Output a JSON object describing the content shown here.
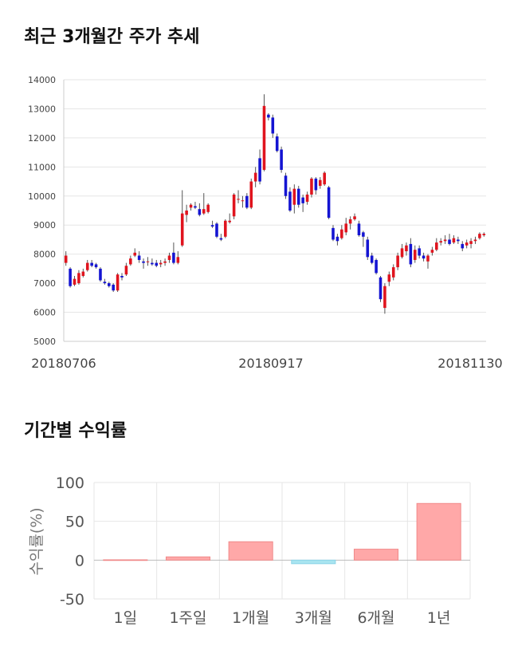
{
  "sections": {
    "price_title": "최근 3개월간 주가 추세",
    "return_title": "기간별 수익률"
  },
  "colors": {
    "up": "#e0141e",
    "down": "#1414d2",
    "positive_bar": "#ffa8a8",
    "negative_bar": "#a8e4f0",
    "grid": "#e6e6e6"
  },
  "chart_data": [
    {
      "type": "candlestick",
      "ylim": [
        5000,
        14000
      ],
      "yticks": [
        "5000",
        "6000",
        "7000",
        "8000",
        "9000",
        "10000",
        "11000",
        "12000",
        "13000",
        "14000"
      ],
      "x_labels": [
        "20180706",
        "20180917",
        "20181130"
      ],
      "grid": true,
      "series": [
        {
          "o": 7700,
          "c": 7950,
          "h": 8100,
          "l": 7600
        },
        {
          "o": 7500,
          "c": 6900,
          "h": 7550,
          "l": 6850
        },
        {
          "o": 6950,
          "c": 7150,
          "h": 7250,
          "l": 6900
        },
        {
          "o": 7000,
          "c": 7350,
          "h": 7450,
          "l": 6950
        },
        {
          "o": 7250,
          "c": 7400,
          "h": 7500,
          "l": 7200
        },
        {
          "o": 7450,
          "c": 7700,
          "h": 7800,
          "l": 7400
        },
        {
          "o": 7700,
          "c": 7600,
          "h": 7800,
          "l": 7550
        },
        {
          "o": 7650,
          "c": 7550,
          "h": 7700,
          "l": 7500
        },
        {
          "o": 7500,
          "c": 7100,
          "h": 7550,
          "l": 7050
        },
        {
          "o": 7050,
          "c": 7000,
          "h": 7150,
          "l": 6950
        },
        {
          "o": 7000,
          "c": 6900,
          "h": 7050,
          "l": 6850
        },
        {
          "o": 6950,
          "c": 6750,
          "h": 7000,
          "l": 6700
        },
        {
          "o": 6750,
          "c": 7300,
          "h": 7350,
          "l": 6700
        },
        {
          "o": 7250,
          "c": 7200,
          "h": 7350,
          "l": 7100
        },
        {
          "o": 7300,
          "c": 7600,
          "h": 7700,
          "l": 7250
        },
        {
          "o": 7650,
          "c": 7850,
          "h": 7950,
          "l": 7600
        },
        {
          "o": 7950,
          "c": 8050,
          "h": 8200,
          "l": 7900
        },
        {
          "o": 7950,
          "c": 7800,
          "h": 8100,
          "l": 7700
        },
        {
          "o": 7750,
          "c": 7700,
          "h": 7850,
          "l": 7500
        },
        {
          "o": 7750,
          "c": 7750,
          "h": 7900,
          "l": 7600
        },
        {
          "o": 7700,
          "c": 7650,
          "h": 7850,
          "l": 7600
        },
        {
          "o": 7700,
          "c": 7600,
          "h": 7800,
          "l": 7550
        },
        {
          "o": 7650,
          "c": 7700,
          "h": 7800,
          "l": 7550
        },
        {
          "o": 7700,
          "c": 7750,
          "h": 7850,
          "l": 7600
        },
        {
          "o": 7800,
          "c": 7950,
          "h": 8050,
          "l": 7700
        },
        {
          "o": 8050,
          "c": 7700,
          "h": 8400,
          "l": 7650
        },
        {
          "o": 7700,
          "c": 7900,
          "h": 8100,
          "l": 7650
        },
        {
          "o": 8300,
          "c": 9400,
          "h": 10200,
          "l": 8250
        },
        {
          "o": 9350,
          "c": 9500,
          "h": 9700,
          "l": 9100
        },
        {
          "o": 9600,
          "c": 9700,
          "h": 9750,
          "l": 9500
        },
        {
          "o": 9650,
          "c": 9600,
          "h": 9800,
          "l": 9550
        },
        {
          "o": 9550,
          "c": 9350,
          "h": 9750,
          "l": 9300
        },
        {
          "o": 9400,
          "c": 9550,
          "h": 10100,
          "l": 9350
        },
        {
          "o": 9450,
          "c": 9700,
          "h": 9750,
          "l": 9400
        },
        {
          "o": 9000,
          "c": 8950,
          "h": 9150,
          "l": 8900
        },
        {
          "o": 9050,
          "c": 8600,
          "h": 9100,
          "l": 8550
        },
        {
          "o": 8550,
          "c": 8500,
          "h": 8700,
          "l": 8450
        },
        {
          "o": 8600,
          "c": 9150,
          "h": 9200,
          "l": 8550
        },
        {
          "o": 9100,
          "c": 9150,
          "h": 9400,
          "l": 9050
        },
        {
          "o": 9300,
          "c": 10050,
          "h": 10100,
          "l": 9200
        },
        {
          "o": 9900,
          "c": 9900,
          "h": 10200,
          "l": 9750
        },
        {
          "o": 9850,
          "c": 9850,
          "h": 10000,
          "l": 9600
        },
        {
          "o": 10000,
          "c": 9600,
          "h": 10100,
          "l": 9550
        },
        {
          "o": 9600,
          "c": 10500,
          "h": 10600,
          "l": 9550
        },
        {
          "o": 10500,
          "c": 10800,
          "h": 11000,
          "l": 10300
        },
        {
          "o": 11300,
          "c": 10500,
          "h": 11600,
          "l": 10400
        },
        {
          "o": 10900,
          "c": 13100,
          "h": 13500,
          "l": 10850
        },
        {
          "o": 12800,
          "c": 12700,
          "h": 12850,
          "l": 12600
        },
        {
          "o": 12700,
          "c": 12150,
          "h": 12800,
          "l": 12000
        },
        {
          "o": 12050,
          "c": 11550,
          "h": 12150,
          "l": 11500
        },
        {
          "o": 11600,
          "c": 10900,
          "h": 11700,
          "l": 10800
        },
        {
          "o": 10700,
          "c": 10000,
          "h": 10800,
          "l": 9900
        },
        {
          "o": 10150,
          "c": 9500,
          "h": 10300,
          "l": 9450
        },
        {
          "o": 9700,
          "c": 10250,
          "h": 10400,
          "l": 9400
        },
        {
          "o": 10250,
          "c": 9700,
          "h": 10350,
          "l": 9600
        },
        {
          "o": 9950,
          "c": 9750,
          "h": 10050,
          "l": 9450
        },
        {
          "o": 9800,
          "c": 10050,
          "h": 10150,
          "l": 9700
        },
        {
          "o": 10050,
          "c": 10600,
          "h": 10650,
          "l": 9950
        },
        {
          "o": 10600,
          "c": 10200,
          "h": 10650,
          "l": 10050
        },
        {
          "o": 10350,
          "c": 10550,
          "h": 10650,
          "l": 10250
        },
        {
          "o": 10400,
          "c": 10800,
          "h": 10850,
          "l": 10350
        },
        {
          "o": 10300,
          "c": 9250,
          "h": 10350,
          "l": 9200
        },
        {
          "o": 8900,
          "c": 8500,
          "h": 9000,
          "l": 8450
        },
        {
          "o": 8600,
          "c": 8450,
          "h": 8700,
          "l": 8300
        },
        {
          "o": 8550,
          "c": 8850,
          "h": 9000,
          "l": 8500
        },
        {
          "o": 8750,
          "c": 9050,
          "h": 9250,
          "l": 8650
        },
        {
          "o": 9050,
          "c": 9200,
          "h": 9300,
          "l": 8850
        },
        {
          "o": 9200,
          "c": 9300,
          "h": 9400,
          "l": 9150
        },
        {
          "o": 9050,
          "c": 8650,
          "h": 9150,
          "l": 8600
        },
        {
          "o": 8750,
          "c": 8600,
          "h": 8800,
          "l": 8250
        },
        {
          "o": 8500,
          "c": 7900,
          "h": 8600,
          "l": 7800
        },
        {
          "o": 7950,
          "c": 7700,
          "h": 8050,
          "l": 7650
        },
        {
          "o": 7800,
          "c": 7350,
          "h": 7850,
          "l": 7300
        },
        {
          "o": 7200,
          "c": 6450,
          "h": 7250,
          "l": 6350
        },
        {
          "o": 6150,
          "c": 6900,
          "h": 7000,
          "l": 5950
        },
        {
          "o": 7050,
          "c": 7300,
          "h": 7400,
          "l": 6900
        },
        {
          "o": 7200,
          "c": 7550,
          "h": 7650,
          "l": 7100
        },
        {
          "o": 7550,
          "c": 7950,
          "h": 8050,
          "l": 7450
        },
        {
          "o": 7900,
          "c": 8200,
          "h": 8350,
          "l": 7850
        },
        {
          "o": 8100,
          "c": 8300,
          "h": 8400,
          "l": 7950
        },
        {
          "o": 8350,
          "c": 7650,
          "h": 8550,
          "l": 7550
        },
        {
          "o": 7800,
          "c": 8150,
          "h": 8300,
          "l": 7700
        },
        {
          "o": 8200,
          "c": 7950,
          "h": 8300,
          "l": 7850
        },
        {
          "o": 7950,
          "c": 7850,
          "h": 8050,
          "l": 7750
        },
        {
          "o": 7750,
          "c": 7950,
          "h": 8000,
          "l": 7500
        },
        {
          "o": 8050,
          "c": 8150,
          "h": 8250,
          "l": 7950
        },
        {
          "o": 8150,
          "c": 8400,
          "h": 8550,
          "l": 8100
        },
        {
          "o": 8400,
          "c": 8450,
          "h": 8550,
          "l": 8300
        },
        {
          "o": 8450,
          "c": 8500,
          "h": 8650,
          "l": 8350
        },
        {
          "o": 8500,
          "c": 8350,
          "h": 8700,
          "l": 8300
        },
        {
          "o": 8400,
          "c": 8550,
          "h": 8650,
          "l": 8350
        },
        {
          "o": 8500,
          "c": 8450,
          "h": 8600,
          "l": 8350
        },
        {
          "o": 8350,
          "c": 8200,
          "h": 8450,
          "l": 8100
        },
        {
          "o": 8300,
          "c": 8400,
          "h": 8500,
          "l": 8200
        },
        {
          "o": 8350,
          "c": 8450,
          "h": 8550,
          "l": 8200
        },
        {
          "o": 8450,
          "c": 8500,
          "h": 8600,
          "l": 8350
        },
        {
          "o": 8550,
          "c": 8700,
          "h": 8750,
          "l": 8500
        },
        {
          "o": 8650,
          "c": 8700,
          "h": 8750,
          "l": 8600
        }
      ]
    },
    {
      "type": "bar",
      "ylabel": "수익률(%)",
      "ylim": [
        -50,
        100
      ],
      "yticks": [
        "100",
        "50",
        "0",
        "-50"
      ],
      "categories": [
        "1일",
        "1주일",
        "1개월",
        "3개월",
        "6개월",
        "1년"
      ],
      "values": [
        0.0,
        4.2,
        23.7,
        -4.6,
        14.1,
        73.0
      ],
      "grid": true
    }
  ]
}
